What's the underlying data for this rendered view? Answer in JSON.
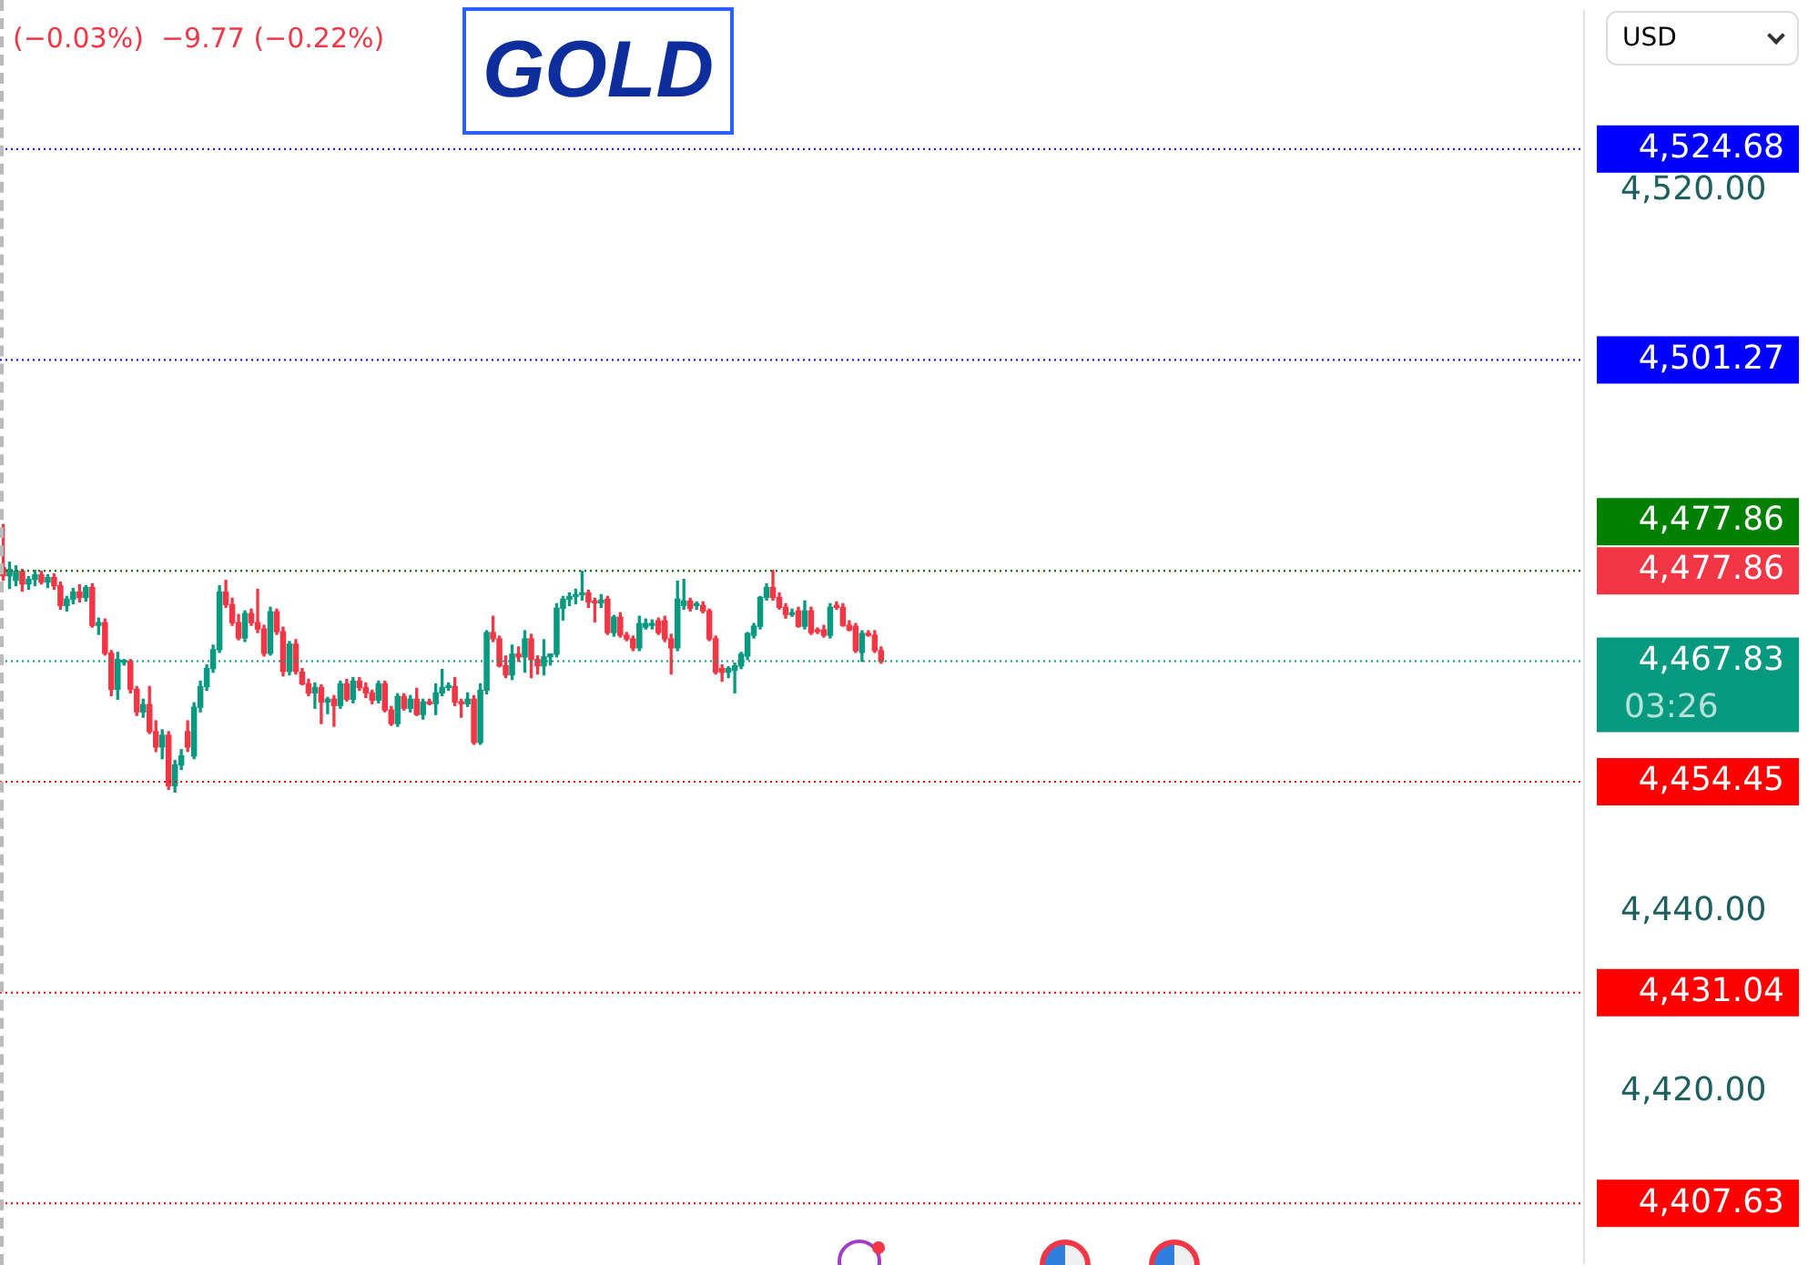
{
  "chart_data": {
    "type": "candlestick",
    "title": "GOLD",
    "annotations": [
      "(−0.03%)  −9.77 (−0.22%)",
      "USD",
      "03:26"
    ],
    "categories": [
      null,
      null,
      null,
      null,
      null,
      null,
      null,
      null,
      null,
      null,
      null,
      null,
      null,
      null,
      null,
      null,
      null,
      null,
      null,
      null,
      null,
      null,
      null,
      null,
      null,
      null,
      null,
      null,
      null,
      null,
      null,
      null,
      null,
      null,
      null,
      null,
      null,
      null,
      null,
      null,
      null,
      null,
      null,
      null,
      null,
      null,
      null,
      null,
      null,
      null,
      null,
      null,
      null,
      null,
      null,
      null,
      null,
      null,
      null,
      null,
      null,
      null,
      null,
      null,
      null,
      null,
      null,
      null,
      null,
      null,
      null,
      null,
      null,
      null,
      null,
      null,
      null,
      null,
      null,
      null,
      null,
      null,
      null,
      null,
      null,
      null,
      null,
      null,
      null,
      null,
      null,
      null,
      null,
      null,
      null,
      null,
      null,
      null,
      null,
      null,
      null,
      null,
      null,
      null,
      null,
      null,
      null,
      null,
      null,
      null,
      null,
      null,
      null,
      null,
      null,
      null,
      null,
      null,
      null,
      null,
      null,
      null,
      null,
      null,
      null,
      null,
      null,
      null,
      null,
      null,
      null,
      null,
      null,
      null,
      null,
      null,
      null,
      null,
      null,
      null,
      null,
      null,
      null,
      null,
      null,
      null,
      null,
      null,
      null,
      null,
      null,
      null,
      null,
      null,
      null,
      null,
      null,
      null,
      null,
      null,
      null,
      null,
      null,
      null,
      null,
      null,
      null,
      null,
      null,
      null,
      null,
      null,
      null,
      null,
      null,
      null,
      null,
      null,
      null,
      null,
      null,
      null,
      null,
      null,
      null,
      null,
      null,
      null,
      null,
      null,
      null,
      null,
      null,
      null,
      null,
      null,
      null,
      null,
      null,
      null,
      null,
      null,
      null,
      null,
      null,
      null,
      null,
      null,
      null,
      null,
      null,
      null,
      null,
      null,
      null,
      null,
      null,
      null,
      null,
      null,
      null,
      null,
      null,
      null,
      null,
      null,
      null,
      null,
      null,
      null,
      null,
      null,
      null,
      null,
      null,
      null,
      null,
      null,
      null,
      null,
      null,
      null,
      null,
      null,
      null,
      null,
      null,
      null,
      null
    ],
    "ohlc": [
      [
        4478.2,
        4483.0,
        4476.8,
        4477.3
      ],
      [
        4477.3,
        4478.8,
        4475.9,
        4478.0
      ],
      [
        4476.8,
        4478.4,
        4476.2,
        4477.8
      ],
      [
        4477.8,
        4478.0,
        4475.6,
        4476.4
      ],
      [
        4476.4,
        4477.2,
        4475.8,
        4476.9
      ],
      [
        4476.9,
        4477.9,
        4476.2,
        4477.4
      ],
      [
        4477.4,
        4477.8,
        4476.4,
        4476.6
      ],
      [
        4476.6,
        4477.4,
        4476.0,
        4477.1
      ],
      [
        4477.1,
        4477.5,
        4475.8,
        4476.2
      ],
      [
        4476.2,
        4476.6,
        4473.6,
        4474.0
      ],
      [
        4474.0,
        4475.0,
        4473.4,
        4474.7
      ],
      [
        4474.7,
        4475.9,
        4474.2,
        4475.5
      ],
      [
        4475.5,
        4476.3,
        4474.4,
        4474.9
      ],
      [
        4474.9,
        4476.2,
        4474.5,
        4476.0
      ],
      [
        4476.0,
        4476.4,
        4471.6,
        4471.8
      ],
      [
        4471.8,
        4472.6,
        4470.8,
        4472.1
      ],
      [
        4472.1,
        4472.5,
        4468.5,
        4468.7
      ],
      [
        4468.7,
        4469.0,
        4464.0,
        4464.7
      ],
      [
        4464.7,
        4468.8,
        4463.6,
        4468.0
      ],
      [
        4467.7,
        4468.0,
        4467.4,
        4467.8
      ],
      [
        4467.8,
        4468.0,
        4464.3,
        4464.7
      ],
      [
        4464.7,
        4465.0,
        4461.8,
        4462.2
      ],
      [
        4462.2,
        4463.6,
        4461.6,
        4463.0
      ],
      [
        4463.0,
        4465.0,
        4459.8,
        4460.0
      ],
      [
        4460.0,
        4461.2,
        4457.8,
        4458.3
      ],
      [
        4458.3,
        4460.2,
        4457.0,
        4459.6
      ],
      [
        4459.6,
        4460.0,
        4453.6,
        4454.0
      ],
      [
        4454.0,
        4456.8,
        4453.3,
        4456.3
      ],
      [
        4456.3,
        4458.0,
        4455.8,
        4457.3
      ],
      [
        4460.0,
        4461.2,
        4457.8,
        4458.3
      ],
      [
        4457.3,
        4463.2,
        4457.0,
        4462.7
      ],
      [
        4462.7,
        4465.6,
        4462.2,
        4465.0
      ],
      [
        4465.0,
        4467.4,
        4464.6,
        4467.0
      ],
      [
        4467.0,
        4469.6,
        4466.6,
        4469.1
      ],
      [
        4469.1,
        4476.2,
        4468.8,
        4475.5
      ],
      [
        4475.5,
        4476.8,
        4473.8,
        4474.1
      ],
      [
        4474.1,
        4474.8,
        4471.8,
        4472.1
      ],
      [
        4472.1,
        4473.0,
        4470.2,
        4470.4
      ],
      [
        4470.4,
        4473.4,
        4470.0,
        4473.1
      ],
      [
        4473.1,
        4473.6,
        4471.8,
        4472.1
      ],
      [
        4472.1,
        4475.8,
        4471.0,
        4471.4
      ],
      [
        4471.4,
        4471.8,
        4468.4,
        4468.7
      ],
      [
        4468.7,
        4473.8,
        4468.5,
        4473.3
      ],
      [
        4473.3,
        4473.6,
        4470.8,
        4471.1
      ],
      [
        4471.1,
        4471.6,
        4466.2,
        4466.7
      ],
      [
        4466.7,
        4470.0,
        4466.3,
        4469.7
      ],
      [
        4469.7,
        4470.2,
        4466.4,
        4466.7
      ],
      [
        4466.6,
        4467.0,
        4465.2,
        4465.3
      ],
      [
        4465.3,
        4465.8,
        4464.0,
        4464.3
      ],
      [
        4464.3,
        4465.4,
        4462.6,
        4464.9
      ],
      [
        4464.9,
        4465.2,
        4460.9,
        4463.3
      ],
      [
        4463.3,
        4463.8,
        4462.0,
        4463.6
      ],
      [
        4463.6,
        4464.0,
        4460.6,
        4462.9
      ],
      [
        4462.9,
        4465.6,
        4462.6,
        4465.3
      ],
      [
        4465.3,
        4465.8,
        4463.4,
        4463.6
      ],
      [
        4463.6,
        4466.0,
        4463.2,
        4465.6
      ],
      [
        4465.6,
        4466.0,
        4464.6,
        4464.9
      ],
      [
        4464.9,
        4465.4,
        4463.8,
        4464.3
      ],
      [
        4464.3,
        4464.6,
        4463.1,
        4463.5
      ],
      [
        4463.5,
        4465.6,
        4463.2,
        4465.3
      ],
      [
        4465.3,
        4465.6,
        4462.2,
        4462.4
      ],
      [
        4462.4,
        4462.8,
        4460.7,
        4460.9
      ],
      [
        4460.9,
        4464.2,
        4460.6,
        4463.9
      ],
      [
        4463.9,
        4464.2,
        4462.4,
        4462.6
      ],
      [
        4462.6,
        4464.0,
        4462.2,
        4463.6
      ],
      [
        4463.6,
        4464.8,
        4461.8,
        4461.9
      ],
      [
        4461.9,
        4463.6,
        4461.4,
        4463.3
      ],
      [
        4463.3,
        4463.6,
        4463.0,
        4463.1
      ],
      [
        4463.1,
        4465.3,
        4461.9,
        4464.3
      ],
      [
        4464.3,
        4466.9,
        4464.0,
        4464.9
      ],
      [
        4464.9,
        4465.4,
        4464.6,
        4465.0
      ],
      [
        4465.0,
        4466.0,
        4462.9,
        4463.3
      ],
      [
        4463.3,
        4463.6,
        4461.6,
        4463.1
      ],
      [
        4463.1,
        4464.3,
        4462.8,
        4463.6
      ],
      [
        4463.6,
        4464.0,
        4458.6,
        4458.8
      ],
      [
        4458.8,
        4465.3,
        4458.6,
        4464.6
      ],
      [
        4464.6,
        4471.2,
        4464.2,
        4471.0
      ],
      [
        4471.0,
        4472.8,
        4470.0,
        4470.3
      ],
      [
        4470.3,
        4470.6,
        4467.2,
        4467.3
      ],
      [
        4467.3,
        4468.4,
        4466.0,
        4466.3
      ],
      [
        4466.3,
        4469.6,
        4465.8,
        4468.6
      ],
      [
        4468.6,
        4469.4,
        4467.8,
        4468.3
      ],
      [
        4468.3,
        4471.2,
        4466.6,
        4470.3
      ],
      [
        4470.3,
        4470.8,
        4466.0,
        4468.0
      ],
      [
        4468.0,
        4468.4,
        4466.4,
        4467.3
      ],
      [
        4467.3,
        4470.2,
        4466.3,
        4468.3
      ],
      [
        4468.3,
        4468.6,
        4467.4,
        4468.6
      ],
      [
        4468.6,
        4474.2,
        4468.3,
        4473.7
      ],
      [
        4473.7,
        4475.0,
        4472.4,
        4474.7
      ],
      [
        4474.7,
        4475.4,
        4474.0,
        4475.0
      ],
      [
        4475.0,
        4475.8,
        4474.2,
        4475.2
      ],
      [
        4475.2,
        4477.8,
        4474.6,
        4475.4
      ],
      [
        4475.4,
        4475.7,
        4473.8,
        4474.4
      ],
      [
        4474.4,
        4474.8,
        4472.2,
        4474.3
      ],
      [
        4474.3,
        4475.2,
        4473.8,
        4474.6
      ],
      [
        4474.7,
        4475.0,
        4470.8,
        4471.0
      ],
      [
        4471.0,
        4472.9,
        4470.6,
        4472.7
      ],
      [
        4472.7,
        4473.2,
        4470.5,
        4470.7
      ],
      [
        4470.7,
        4471.0,
        4470.1,
        4470.3
      ],
      [
        4470.3,
        4470.6,
        4469.0,
        4469.3
      ],
      [
        4469.3,
        4472.8,
        4469.0,
        4472.0
      ],
      [
        4471.6,
        4472.5,
        4471.4,
        4472.0
      ],
      [
        4471.8,
        4472.4,
        4471.4,
        4472.0
      ],
      [
        4472.3,
        4472.6,
        4470.8,
        4471.0
      ],
      [
        4472.3,
        4472.8,
        4470.0,
        4470.3
      ],
      [
        4470.3,
        4470.8,
        4466.4,
        4469.3
      ],
      [
        4469.3,
        4476.7,
        4469.0,
        4474.7
      ],
      [
        4474.0,
        4476.9,
        4473.6,
        4474.5
      ],
      [
        4474.5,
        4474.8,
        4473.4,
        4473.7
      ],
      [
        4474.0,
        4474.4,
        4473.6,
        4474.2
      ],
      [
        4474.0,
        4474.4,
        4473.2,
        4473.4
      ],
      [
        4473.4,
        4473.6,
        4470.1,
        4470.3
      ],
      [
        4470.3,
        4470.6,
        4466.4,
        4466.6
      ],
      [
        4467.0,
        4467.4,
        4465.6,
        4466.6
      ],
      [
        4466.6,
        4467.2,
        4466.0,
        4467.0
      ],
      [
        4466.8,
        4467.6,
        4464.3,
        4467.3
      ],
      [
        4467.3,
        4468.8,
        4467.0,
        4468.6
      ],
      [
        4468.4,
        4471.0,
        4468.0,
        4470.9
      ],
      [
        4470.7,
        4472.0,
        4470.4,
        4471.7
      ],
      [
        4471.7,
        4475.0,
        4471.4,
        4474.9
      ],
      [
        4474.9,
        4476.4,
        4474.6,
        4476.0
      ],
      [
        4476.0,
        4477.9,
        4474.6,
        4474.9
      ],
      [
        4474.9,
        4475.4,
        4473.6,
        4473.8
      ],
      [
        4473.8,
        4474.2,
        4472.6,
        4473.0
      ],
      [
        4473.0,
        4473.6,
        4472.8,
        4473.2
      ],
      [
        4473.4,
        4473.8,
        4471.6,
        4471.7
      ],
      [
        4471.7,
        4474.5,
        4471.4,
        4473.4
      ],
      [
        4473.4,
        4473.8,
        4470.8,
        4471.0
      ],
      [
        4471.2,
        4471.5,
        4470.9,
        4471.1
      ],
      [
        4471.3,
        4471.8,
        4470.5,
        4470.7
      ],
      [
        4470.7,
        4474.2,
        4470.4,
        4473.8
      ],
      [
        4474.0,
        4474.4,
        4473.6,
        4473.8
      ],
      [
        4473.8,
        4474.2,
        4471.7,
        4471.8
      ],
      [
        4471.8,
        4472.3,
        4471.2,
        4471.3
      ],
      [
        4471.7,
        4472.0,
        4468.8,
        4469.0
      ],
      [
        4468.8,
        4471.2,
        4467.8,
        4470.9
      ],
      [
        4470.9,
        4471.2,
        4470.6,
        4470.7
      ],
      [
        4470.7,
        4471.2,
        4468.8,
        4469.0
      ],
      [
        4469.0,
        4469.4,
        4467.6,
        4467.8
      ],
      null,
      null,
      null,
      null,
      null,
      null,
      null,
      null,
      null,
      null,
      null,
      null,
      null,
      null,
      null,
      null,
      null,
      null,
      null,
      null,
      null,
      null,
      null,
      null,
      null,
      null,
      null,
      null,
      null,
      null,
      null,
      null,
      null,
      null,
      null,
      null,
      null,
      null,
      null,
      null,
      null,
      null,
      null,
      null,
      null,
      null,
      null,
      null,
      null,
      null,
      null,
      null,
      null,
      null,
      null,
      null,
      null,
      null,
      null,
      null,
      null,
      null,
      null,
      null,
      null,
      null,
      null,
      null,
      null,
      null,
      null,
      null,
      null,
      null,
      null,
      null,
      null,
      null,
      null,
      null,
      null,
      null,
      null,
      null,
      null,
      null,
      null,
      null,
      null,
      null,
      null,
      null,
      null,
      null,
      null,
      null,
      null,
      null,
      null,
      null,
      null,
      null,
      null,
      null,
      null,
      null,
      null,
      null,
      null,
      null
    ],
    "ylim": [
      4401,
      4540
    ],
    "yticks": [
      {
        "value": 4420,
        "label": "4,420.00"
      },
      {
        "value": 4440,
        "label": "4,440.00"
      },
      {
        "value": 4520,
        "label": "4,520.00"
      }
    ],
    "tick_labels": "y",
    "ref_lines": [
      {
        "axis": "y",
        "value": 4524.68,
        "label": "4,524.68",
        "color": "#0000ff",
        "line_style": "dotted"
      },
      {
        "axis": "y",
        "value": 4501.27,
        "label": "4,501.27",
        "color": "#0000ff",
        "line_style": "dotted"
      },
      {
        "axis": "y",
        "value": 4477.86,
        "label": "4,477.86",
        "color": "#008000",
        "line_style": "dotted"
      },
      {
        "axis": "y",
        "value": 4477.86,
        "label": "4,477.86",
        "color": "#f23645",
        "line_style": "dotted"
      },
      {
        "axis": "y",
        "value": 4467.83,
        "label": "4,467.83",
        "color": "#089981",
        "line_style": "dotted"
      },
      {
        "axis": "y",
        "value": 4454.45,
        "label": "4,454.45",
        "color": "#ff0000",
        "line_style": "dotted"
      },
      {
        "axis": "y",
        "value": 4431.04,
        "label": "4,431.04",
        "color": "#ff0000",
        "line_style": "dotted"
      },
      {
        "axis": "y",
        "value": 4407.63,
        "label": "4,407.63",
        "color": "#ff0000",
        "line_style": "dotted"
      }
    ]
  }
}
